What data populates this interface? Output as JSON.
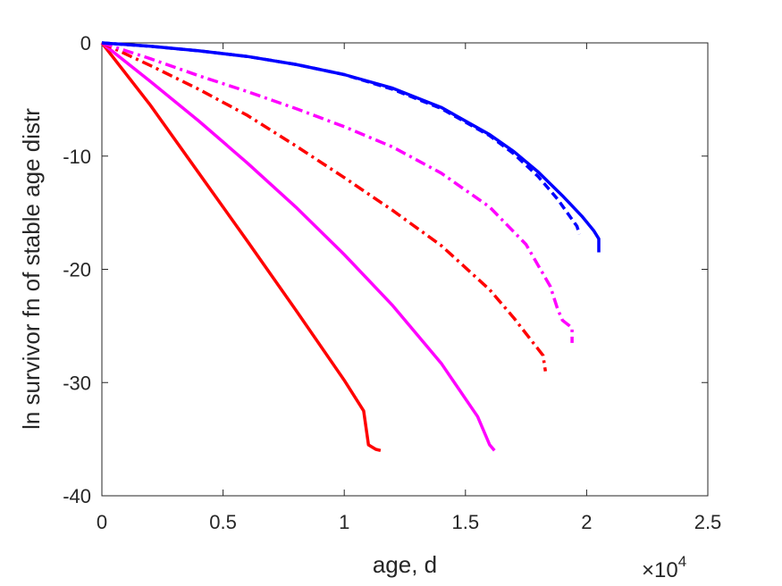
{
  "chart_data": {
    "type": "line",
    "title": "",
    "xlabel": "age, d",
    "ylabel": "ln survivor fn of stable age distr",
    "x_exponent_label": {
      "base": "×10",
      "power": "4"
    },
    "xlim": [
      0,
      2.5
    ],
    "ylim": [
      -40,
      0
    ],
    "x_ticks": [
      0,
      0.5,
      1,
      1.5,
      2,
      2.5
    ],
    "x_tick_labels": [
      "0",
      "0.5",
      "1",
      "1.5",
      "2",
      "2.5"
    ],
    "y_ticks": [
      0,
      -10,
      -20,
      -30,
      -40
    ],
    "y_tick_labels": [
      "0",
      "-10",
      "-20",
      "-30",
      "-40"
    ],
    "grid": false,
    "series": [
      {
        "color": "#ff0000",
        "style": "solid",
        "x": [
          0,
          0.2,
          0.4,
          0.6,
          0.8,
          1.0,
          1.08,
          1.1,
          1.13,
          1.15
        ],
        "y": [
          0,
          -5.5,
          -11.5,
          -17.5,
          -23.6,
          -29.8,
          -32.5,
          -35.5,
          -35.9,
          -36
        ]
      },
      {
        "color": "#ff00ff",
        "style": "solid",
        "x": [
          0,
          0.2,
          0.4,
          0.6,
          0.8,
          1.0,
          1.2,
          1.4,
          1.55,
          1.6,
          1.62
        ],
        "y": [
          0,
          -3.4,
          -6.9,
          -10.6,
          -14.5,
          -18.7,
          -23.2,
          -28.3,
          -33.0,
          -35.5,
          -36
        ]
      },
      {
        "color": "#ff0000",
        "style": "dashdot",
        "x": [
          0,
          0.2,
          0.4,
          0.6,
          0.8,
          1.0,
          1.2,
          1.4,
          1.6,
          1.7,
          1.78,
          1.82,
          1.83
        ],
        "y": [
          0,
          -2.0,
          -4.1,
          -6.4,
          -9.1,
          -11.9,
          -14.8,
          -17.9,
          -21.8,
          -24.3,
          -26.5,
          -27.6,
          -29
        ]
      },
      {
        "color": "#ff00ff",
        "style": "dashdot",
        "x": [
          0,
          0.2,
          0.4,
          0.6,
          0.8,
          1.0,
          1.2,
          1.4,
          1.6,
          1.75,
          1.85,
          1.88,
          1.9,
          1.93,
          1.94,
          1.94
        ],
        "y": [
          0,
          -1.4,
          -2.9,
          -4.3,
          -5.8,
          -7.4,
          -9.2,
          -11.5,
          -14.5,
          -17.8,
          -21.5,
          -23.5,
          -24.5,
          -25.0,
          -25.2,
          -26.5
        ]
      },
      {
        "color": "#0000ff",
        "style": "dashed",
        "x": [
          0,
          0.2,
          0.4,
          0.6,
          0.8,
          1.0,
          1.2,
          1.4,
          1.6,
          1.7,
          1.8,
          1.88,
          1.93,
          1.96,
          1.97
        ],
        "y": [
          0,
          -0.3,
          -0.7,
          -1.2,
          -1.9,
          -2.8,
          -4.1,
          -5.8,
          -8.2,
          -9.8,
          -11.8,
          -13.8,
          -15.3,
          -16.2,
          -16.9
        ]
      },
      {
        "color": "#0000ff",
        "style": "solid",
        "x": [
          0,
          0.2,
          0.4,
          0.6,
          0.8,
          1.0,
          1.2,
          1.4,
          1.6,
          1.7,
          1.8,
          1.9,
          1.98,
          2.03,
          2.05,
          2.05
        ],
        "y": [
          0,
          -0.3,
          -0.7,
          -1.2,
          -1.9,
          -2.8,
          -4.0,
          -5.7,
          -8.1,
          -9.6,
          -11.4,
          -13.5,
          -15.3,
          -16.6,
          -17.3,
          -18.5
        ]
      }
    ]
  }
}
